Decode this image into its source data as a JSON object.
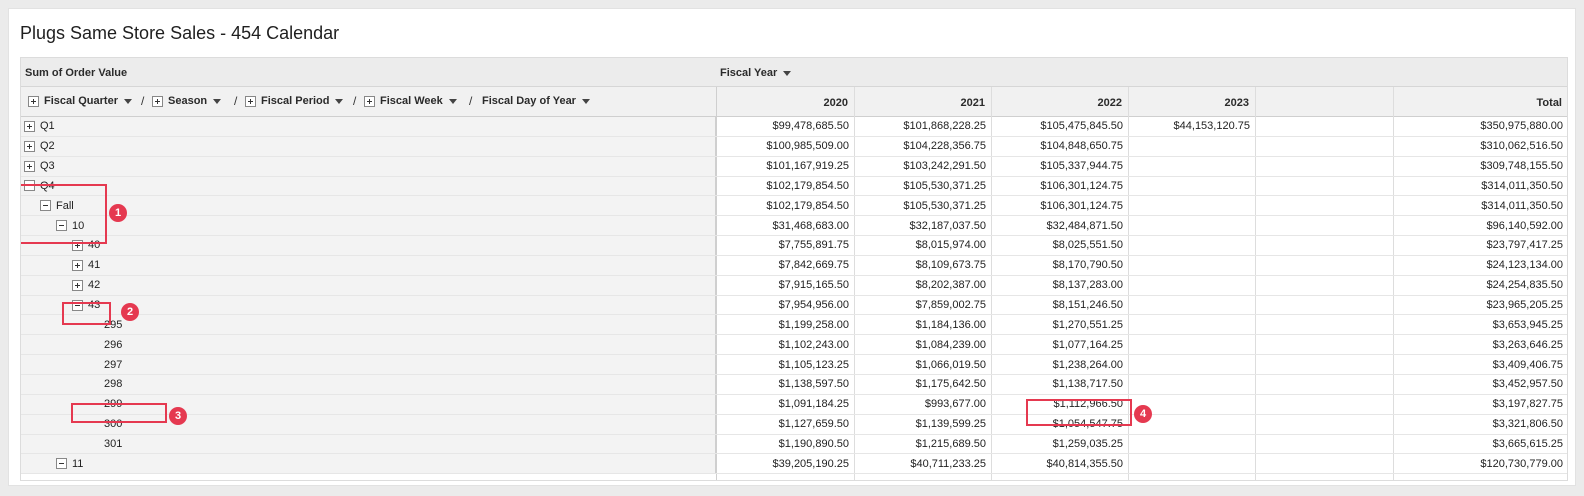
{
  "title": "Plugs Same Store Sales - 454 Calendar",
  "measure_label": "Sum of Order Value",
  "column_dimension_label": "Fiscal Year",
  "row_dimensions": [
    {
      "label": "Fiscal Quarter",
      "has_toggle": true
    },
    {
      "label": "Season",
      "has_toggle": true
    },
    {
      "label": "Fiscal Period",
      "has_toggle": true
    },
    {
      "label": "Fiscal Week",
      "has_toggle": true
    },
    {
      "label": "Fiscal Day of Year",
      "has_toggle": false
    }
  ],
  "separator": "/",
  "years": [
    "2020",
    "2021",
    "2022",
    "2023"
  ],
  "total_label": "Total",
  "accent_color": "#e53950",
  "rows": [
    {
      "label": "Q1",
      "level": 0,
      "toggle": "plus",
      "values": [
        "$99,478,685.50",
        "$101,868,228.25",
        "$105,475,845.50",
        "$44,153,120.75"
      ],
      "total": "$350,975,880.00"
    },
    {
      "label": "Q2",
      "level": 0,
      "toggle": "plus",
      "values": [
        "$100,985,509.00",
        "$104,228,356.75",
        "$104,848,650.75",
        ""
      ],
      "total": "$310,062,516.50"
    },
    {
      "label": "Q3",
      "level": 0,
      "toggle": "plus",
      "values": [
        "$101,167,919.25",
        "$103,242,291.50",
        "$105,337,944.75",
        ""
      ],
      "total": "$309,748,155.50"
    },
    {
      "label": "Q4",
      "level": 0,
      "toggle": "minus",
      "values": [
        "$102,179,854.50",
        "$105,530,371.25",
        "$106,301,124.75",
        ""
      ],
      "total": "$314,011,350.50"
    },
    {
      "label": "Fall",
      "level": 1,
      "toggle": "minus",
      "values": [
        "$102,179,854.50",
        "$105,530,371.25",
        "$106,301,124.75",
        ""
      ],
      "total": "$314,011,350.50"
    },
    {
      "label": "10",
      "level": 2,
      "toggle": "minus",
      "values": [
        "$31,468,683.00",
        "$32,187,037.50",
        "$32,484,871.50",
        ""
      ],
      "total": "$96,140,592.00"
    },
    {
      "label": "40",
      "level": 3,
      "toggle": "plus",
      "values": [
        "$7,755,891.75",
        "$8,015,974.00",
        "$8,025,551.50",
        ""
      ],
      "total": "$23,797,417.25"
    },
    {
      "label": "41",
      "level": 3,
      "toggle": "plus",
      "values": [
        "$7,842,669.75",
        "$8,109,673.75",
        "$8,170,790.50",
        ""
      ],
      "total": "$24,123,134.00"
    },
    {
      "label": "42",
      "level": 3,
      "toggle": "plus",
      "values": [
        "$7,915,165.50",
        "$8,202,387.00",
        "$8,137,283.00",
        ""
      ],
      "total": "$24,254,835.50"
    },
    {
      "label": "43",
      "level": 3,
      "toggle": "minus",
      "values": [
        "$7,954,956.00",
        "$7,859,002.75",
        "$8,151,246.50",
        ""
      ],
      "total": "$23,965,205.25"
    },
    {
      "label": "295",
      "level": 4,
      "toggle": "none",
      "values": [
        "$1,199,258.00",
        "$1,184,136.00",
        "$1,270,551.25",
        ""
      ],
      "total": "$3,653,945.25"
    },
    {
      "label": "296",
      "level": 4,
      "toggle": "none",
      "values": [
        "$1,102,243.00",
        "$1,084,239.00",
        "$1,077,164.25",
        ""
      ],
      "total": "$3,263,646.25"
    },
    {
      "label": "297",
      "level": 4,
      "toggle": "none",
      "values": [
        "$1,105,123.25",
        "$1,066,019.50",
        "$1,238,264.00",
        ""
      ],
      "total": "$3,409,406.75"
    },
    {
      "label": "298",
      "level": 4,
      "toggle": "none",
      "values": [
        "$1,138,597.50",
        "$1,175,642.50",
        "$1,138,717.50",
        ""
      ],
      "total": "$3,452,957.50"
    },
    {
      "label": "299",
      "level": 4,
      "toggle": "none",
      "values": [
        "$1,091,184.25",
        "$993,677.00",
        "$1,112,966.50",
        ""
      ],
      "total": "$3,197,827.75"
    },
    {
      "label": "300",
      "level": 4,
      "toggle": "none",
      "values": [
        "$1,127,659.50",
        "$1,139,599.25",
        "$1,054,547.75",
        ""
      ],
      "total": "$3,321,806.50"
    },
    {
      "label": "301",
      "level": 4,
      "toggle": "none",
      "values": [
        "$1,190,890.50",
        "$1,215,689.50",
        "$1,259,035.25",
        ""
      ],
      "total": "$3,665,615.25"
    },
    {
      "label": "11",
      "level": 2,
      "toggle": "minus",
      "values": [
        "$39,205,190.25",
        "$40,711,233.25",
        "$40,814,355.50",
        ""
      ],
      "total": "$120,730,779.00"
    }
  ],
  "annotations": [
    "1",
    "2",
    "3",
    "4"
  ]
}
